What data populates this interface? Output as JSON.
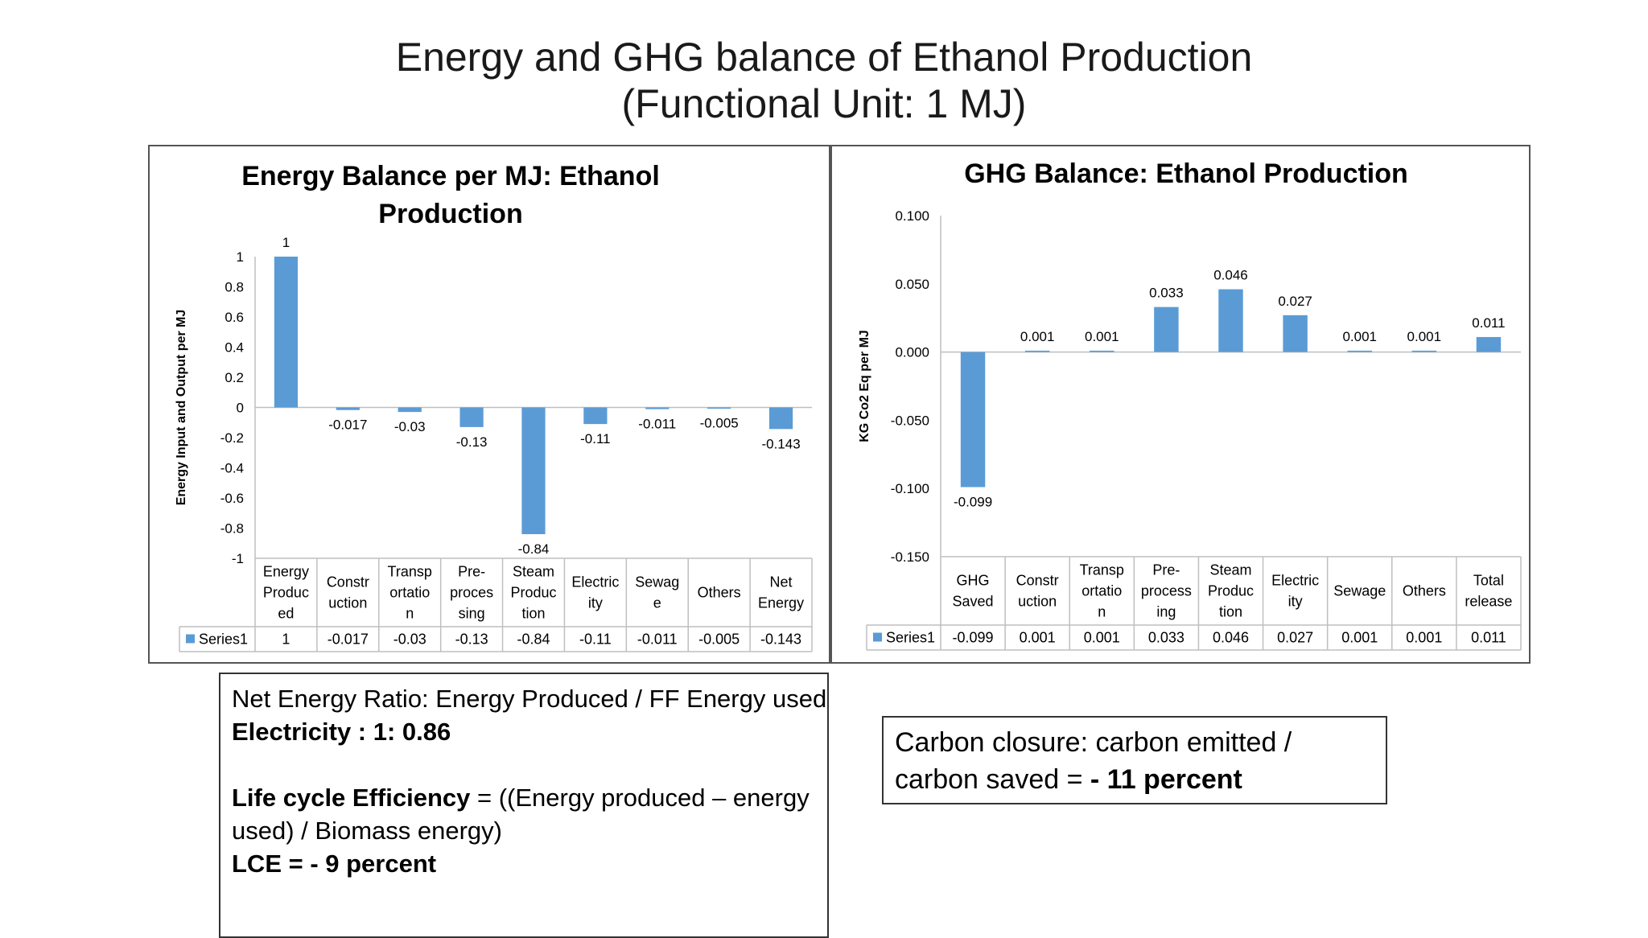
{
  "slide": {
    "title_line1": "Energy and GHG balance of Ethanol Production",
    "title_line2": "(Functional Unit: 1 MJ)"
  },
  "chart_data": [
    {
      "type": "bar",
      "title_line1": "Energy Balance per MJ: Ethanol",
      "title_line2": "Production",
      "ylabel": "Energy Input and Output per MJ",
      "xlabel": "",
      "ylim": [
        -1,
        1
      ],
      "yticks": [
        1,
        0.8,
        0.6,
        0.4,
        0.2,
        0,
        -0.2,
        -0.4,
        -0.6,
        -0.8,
        -1
      ],
      "ytick_labels": [
        "1",
        "0.8",
        "0.6",
        "0.4",
        "0.2",
        "0",
        "-0.2",
        "-0.4",
        "-0.6",
        "-0.8",
        "-1"
      ],
      "categories": [
        [
          "Energy",
          "Produc",
          "ed"
        ],
        [
          "Constr",
          "uction"
        ],
        [
          "Transp",
          "ortatio",
          "n"
        ],
        [
          "Pre-",
          "proces",
          "sing"
        ],
        [
          "Steam",
          "Produc",
          "tion"
        ],
        [
          "Electric",
          "ity"
        ],
        [
          "Sewag",
          "e"
        ],
        [
          "Others"
        ],
        [
          "Net",
          "Energy"
        ]
      ],
      "series": [
        {
          "name": "Series1",
          "values": [
            1,
            -0.017,
            -0.03,
            -0.13,
            -0.84,
            -0.11,
            -0.011,
            -0.005,
            -0.143
          ],
          "labels": [
            "1",
            "-0.017",
            "-0.03",
            "-0.13",
            "-0.84",
            "-0.11",
            "-0.011",
            "-0.005",
            "-0.143"
          ]
        }
      ],
      "data_table": true,
      "color": "#5b9bd5"
    },
    {
      "type": "bar",
      "title_line1": "GHG Balance: Ethanol Production",
      "ylabel": "KG Co2 Eq per MJ",
      "xlabel": "",
      "ylim": [
        -0.15,
        0.1
      ],
      "yticks": [
        0.1,
        0.05,
        0,
        -0.05,
        -0.1,
        -0.15
      ],
      "ytick_labels": [
        "0.100",
        "0.050",
        "0.000",
        "-0.050",
        "-0.100",
        "-0.150"
      ],
      "categories": [
        [
          "GHG",
          "Saved"
        ],
        [
          "Constr",
          "uction"
        ],
        [
          "Transp",
          "ortatio",
          "n"
        ],
        [
          "Pre-",
          "process",
          "ing"
        ],
        [
          "Steam",
          "Produc",
          "tion"
        ],
        [
          "Electric",
          "ity"
        ],
        [
          "Sewage"
        ],
        [
          "Others"
        ],
        [
          "Total",
          "release"
        ]
      ],
      "series": [
        {
          "name": "Series1",
          "values": [
            -0.099,
            0.001,
            0.001,
            0.033,
            0.046,
            0.027,
            0.001,
            0.001,
            0.011
          ],
          "labels": [
            "-0.099",
            "0.001",
            "0.001",
            "0.033",
            "0.046",
            "0.027",
            "0.001",
            "0.001",
            "0.011"
          ]
        }
      ],
      "data_table": true,
      "color": "#5b9bd5"
    }
  ],
  "net_energy_box": {
    "line1": "Net Energy Ratio: Energy Produced / FF Energy used",
    "line2": "Electricity : 1: 0.86",
    "line3_bold": "Life cycle Efficiency",
    "line3_rest": " = ((Energy produced – energy",
    "line4": "used) / Biomass energy)",
    "line5_bold": "LCE =  - 9 percent"
  },
  "carbon_box": {
    "line1": "Carbon closure: carbon emitted /",
    "line2_normal": "carbon saved = ",
    "line2_bold": "- 11 percent"
  }
}
